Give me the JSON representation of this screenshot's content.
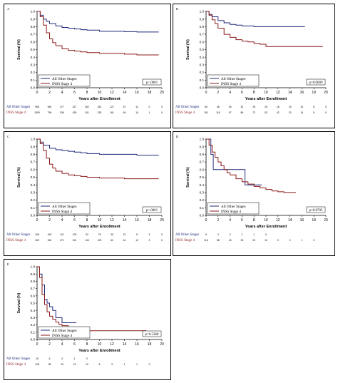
{
  "colors": {
    "other": "#1f2a7a",
    "stage4": "#8b1a1a",
    "axis": "#000000",
    "text": "#000000"
  },
  "chart_data": [
    {
      "type": "line",
      "panel_label": "A",
      "ylabel": "Survival (%)",
      "xlabel": "Years after Enrollment",
      "ylim": [
        0,
        1.0
      ],
      "xlim": [
        0,
        20
      ],
      "yticks": [
        "0.0",
        "0.1",
        "0.2",
        "0.3",
        "0.4",
        "0.5",
        "0.6",
        "0.7",
        "0.8",
        "0.9",
        "1.0"
      ],
      "xticks": [
        "0",
        "2",
        "4",
        "6",
        "8",
        "10",
        "12",
        "14",
        "16",
        "18",
        "20"
      ],
      "legend": [
        "All Other Stages",
        "INSS Stage 4"
      ],
      "legend_position": "bottom-left",
      "pvalue": "p<.0001",
      "series": [
        {
          "name": "All Other Stages",
          "color": "other",
          "x": [
            0,
            0.5,
            1,
            1.5,
            2,
            3,
            4,
            5,
            6,
            7,
            8,
            10,
            12,
            14,
            16,
            18,
            19.5
          ],
          "y": [
            1.0,
            0.95,
            0.9,
            0.87,
            0.84,
            0.81,
            0.79,
            0.78,
            0.77,
            0.76,
            0.755,
            0.74,
            0.74,
            0.735,
            0.73,
            0.73,
            0.73
          ]
        },
        {
          "name": "INSS Stage 4",
          "color": "stage4",
          "x": [
            0,
            0.5,
            1,
            1.5,
            2,
            2.5,
            3,
            4,
            5,
            6,
            7,
            8,
            10,
            12,
            14,
            16,
            18,
            19.5
          ],
          "y": [
            1.0,
            0.93,
            0.82,
            0.72,
            0.64,
            0.59,
            0.55,
            0.51,
            0.49,
            0.48,
            0.47,
            0.46,
            0.45,
            0.45,
            0.44,
            0.43,
            0.43,
            0.43
          ]
        }
      ],
      "risk_table": [
        {
          "label": "All Other Stages",
          "values": [
            "968",
            "549",
            "377",
            "327",
            "262",
            "181",
            "127",
            "57",
            "11",
            "0",
            "0"
          ]
        },
        {
          "label": "INSS Stage 4",
          "values": [
            "1090",
            "796",
            "536",
            "435",
            "341",
            "230",
            "161",
            "64",
            "16",
            "1",
            "0"
          ]
        }
      ]
    },
    {
      "type": "line",
      "panel_label": "B",
      "ylabel": "Survival (%)",
      "xlabel": "Years after Enrollment",
      "ylim": [
        0,
        1.0
      ],
      "xlim": [
        0,
        20
      ],
      "yticks": [
        "0.0",
        "0.1",
        "0.2",
        "0.3",
        "0.4",
        "0.5",
        "0.6",
        "0.7",
        "0.8",
        "0.9",
        "1.0"
      ],
      "xticks": [
        "0",
        "2",
        "4",
        "6",
        "8",
        "10",
        "12",
        "14",
        "16",
        "18",
        "20"
      ],
      "legend": [
        "All Other Stages",
        "INSS Stage 4"
      ],
      "legend_position": "bottom-left",
      "pvalue": "p=0.0009",
      "series": [
        {
          "name": "All Other Stages",
          "color": "other",
          "x": [
            0,
            0.5,
            1,
            2,
            3,
            4,
            5,
            6,
            8,
            10,
            12,
            14,
            16.5
          ],
          "y": [
            1.0,
            0.96,
            0.93,
            0.88,
            0.85,
            0.83,
            0.82,
            0.81,
            0.8,
            0.8,
            0.8,
            0.8,
            0.8
          ]
        },
        {
          "name": "INSS Stage 4",
          "color": "stage4",
          "x": [
            0,
            0.5,
            1,
            1.5,
            2,
            3,
            4,
            5,
            6,
            7,
            8,
            9,
            10,
            12,
            14,
            16,
            18,
            19.5
          ],
          "y": [
            1.0,
            0.95,
            0.89,
            0.84,
            0.78,
            0.7,
            0.66,
            0.63,
            0.61,
            0.6,
            0.58,
            0.57,
            0.54,
            0.54,
            0.54,
            0.54,
            0.54,
            0.54
          ]
        }
      ],
      "risk_table": [
        {
          "label": "All Other Stages",
          "values": [
            "80",
            "48",
            "35",
            "32",
            "28",
            "25",
            "18",
            "15",
            "10",
            "6",
            "0"
          ]
        },
        {
          "label": "INSS Stage 4",
          "values": [
            "151",
            "116",
            "97",
            "86",
            "72",
            "53",
            "42",
            "30",
            "14",
            "5",
            "0"
          ]
        }
      ]
    },
    {
      "type": "line",
      "panel_label": "C",
      "ylabel": "Survival (%)",
      "xlabel": "Years after Enrollment",
      "ylim": [
        0,
        1.0
      ],
      "xlim": [
        0,
        20
      ],
      "yticks": [
        "0.0",
        "0.1",
        "0.2",
        "0.3",
        "0.4",
        "0.5",
        "0.6",
        "0.7",
        "0.8",
        "0.9",
        "1.0"
      ],
      "xticks": [
        "0",
        "2",
        "4",
        "6",
        "8",
        "10",
        "12",
        "14",
        "16",
        "18",
        "20"
      ],
      "legend": [
        "All Other Stages",
        "INSS Stage 4"
      ],
      "legend_position": "bottom-left",
      "pvalue": "p<.0001",
      "series": [
        {
          "name": "All Other Stages",
          "color": "other",
          "x": [
            0,
            0.5,
            1,
            2,
            3,
            4,
            5,
            6,
            7,
            8,
            10,
            12,
            14,
            16,
            18,
            19.5
          ],
          "y": [
            1.0,
            0.96,
            0.92,
            0.88,
            0.86,
            0.85,
            0.84,
            0.83,
            0.82,
            0.81,
            0.8,
            0.8,
            0.8,
            0.79,
            0.79,
            0.79
          ]
        },
        {
          "name": "INSS Stage 4",
          "color": "stage4",
          "x": [
            0,
            0.5,
            1,
            1.5,
            2,
            2.5,
            3,
            4,
            5,
            6,
            7,
            8,
            10,
            12,
            14,
            16,
            18,
            19.5
          ],
          "y": [
            1.0,
            0.94,
            0.85,
            0.75,
            0.67,
            0.62,
            0.58,
            0.55,
            0.53,
            0.52,
            0.51,
            0.5,
            0.49,
            0.49,
            0.48,
            0.48,
            0.48,
            0.48
          ]
        }
      ],
      "risk_table": [
        {
          "label": "All Other Stages",
          "values": [
            "199",
            "153",
            "121",
            "109",
            "92",
            "75",
            "30",
            "22",
            "5",
            "3",
            "0"
          ]
        },
        {
          "label": "INSS Stage 4",
          "values": [
            "409",
            "310",
            "271",
            "212",
            "143",
            "109",
            "62",
            "44",
            "10",
            "2",
            "0"
          ]
        }
      ]
    },
    {
      "type": "line",
      "panel_label": "D",
      "ylabel": "Survival (%)",
      "xlabel": "Years after Enrollment",
      "ylim": [
        0,
        1.0
      ],
      "xlim": [
        0,
        20
      ],
      "yticks": [
        "0.0",
        "0.1",
        "0.2",
        "0.3",
        "0.4",
        "0.5",
        "0.6",
        "0.7",
        "0.8",
        "0.9",
        "1.0"
      ],
      "xticks": [
        "0",
        "2",
        "4",
        "6",
        "8",
        "10",
        "12",
        "14",
        "16",
        "18",
        "20"
      ],
      "legend": [
        "All Other Stages",
        "INSS Stage 4"
      ],
      "legend_position": "bottom-left",
      "pvalue": "p=0.8705",
      "series": [
        {
          "name": "All Other Stages",
          "color": "other",
          "x": [
            0,
            0.8,
            1.2,
            2,
            3,
            4,
            5.5,
            6.5,
            7.5,
            9.3
          ],
          "y": [
            1.0,
            0.8,
            0.6,
            0.6,
            0.6,
            0.6,
            0.6,
            0.4,
            0.4,
            0.4
          ]
        },
        {
          "name": "INSS Stage 4",
          "color": "stage4",
          "x": [
            0,
            0.5,
            1,
            1.5,
            2,
            2.5,
            3,
            3.5,
            4,
            5,
            6,
            7,
            8,
            9,
            10,
            11,
            12,
            13,
            15
          ],
          "y": [
            1.0,
            0.92,
            0.83,
            0.76,
            0.7,
            0.65,
            0.6,
            0.56,
            0.53,
            0.48,
            0.44,
            0.41,
            0.38,
            0.36,
            0.34,
            0.32,
            0.31,
            0.3,
            0.3
          ]
        }
      ],
      "risk_table": [
        {
          "label": "All Other Stages",
          "values": [
            "5",
            "3",
            "3",
            "2",
            "1",
            "0",
            "",
            "",
            "",
            "",
            ""
          ]
        },
        {
          "label": "INSS Stage 4",
          "values": [
            "116",
            "58",
            "43",
            "30",
            "20",
            "12",
            "9",
            "3",
            "1",
            "0",
            ""
          ]
        }
      ]
    },
    {
      "type": "line",
      "panel_label": "E",
      "ylabel": "Survival (%)",
      "xlabel": "Years after Enrollment",
      "ylim": [
        0,
        1.0
      ],
      "xlim": [
        0,
        20
      ],
      "yticks": [
        "0.0",
        "0.1",
        "0.2",
        "0.3",
        "0.4",
        "0.5",
        "0.6",
        "0.7",
        "0.8",
        "0.9",
        "1.0"
      ],
      "xticks": [
        "0",
        "2",
        "4",
        "6",
        "8",
        "10",
        "12",
        "14",
        "16",
        "18",
        "20"
      ],
      "legend": [
        "All Other Stages",
        "INSS Stage 4"
      ],
      "legend_position": "bottom-left",
      "pvalue": "p=0.5368",
      "series": [
        {
          "name": "All Other Stages",
          "color": "other",
          "x": [
            0,
            0.4,
            0.8,
            1.2,
            1.6,
            2,
            2.5,
            3,
            4,
            5,
            6.3
          ],
          "y": [
            1.0,
            0.9,
            0.75,
            0.55,
            0.5,
            0.45,
            0.4,
            0.3,
            0.23,
            0.23,
            0.23
          ]
        },
        {
          "name": "INSS Stage 4",
          "color": "stage4",
          "x": [
            0,
            0.4,
            0.8,
            1.2,
            1.6,
            2,
            2.5,
            3,
            3.5,
            4,
            5,
            6,
            8,
            10,
            12,
            14,
            16,
            17.5
          ],
          "y": [
            1.0,
            0.85,
            0.62,
            0.48,
            0.38,
            0.32,
            0.28,
            0.24,
            0.21,
            0.19,
            0.16,
            0.13,
            0.12,
            0.12,
            0.12,
            0.12,
            0.12,
            0.12
          ]
        }
      ],
      "risk_table": [
        {
          "label": "All Other Stages",
          "values": [
            "15",
            "6",
            "3",
            "1",
            "0",
            "",
            "",
            "",
            "",
            "",
            ""
          ]
        },
        {
          "label": "INSS Stage 4",
          "values": [
            "108",
            "38",
            "19",
            "15",
            "12",
            "8",
            "3",
            "1",
            "1",
            "0",
            ""
          ]
        }
      ]
    }
  ]
}
